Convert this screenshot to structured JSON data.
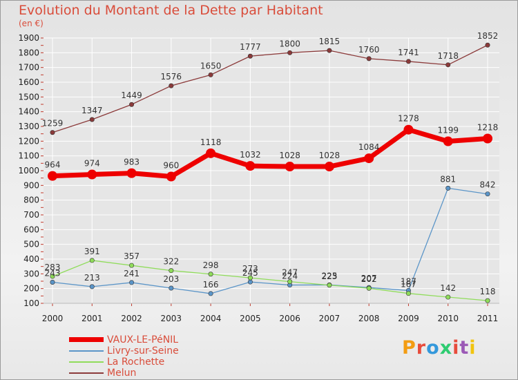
{
  "title": "Evolution du Montant de la Dette par Habitant",
  "subtitle": "(en €)",
  "logo": [
    "P",
    "r",
    "o",
    "x",
    "i",
    "t",
    "i"
  ],
  "logo_colors": [
    "#f39c12",
    "#e74c3c",
    "#3498db",
    "#2ecc71",
    "#e74c3c",
    "#9b59b6",
    "#f1c40f"
  ],
  "colors": {
    "title": "#d94c3a",
    "grid": "#ffffff",
    "axis_ticks": "#c0392b"
  },
  "chart_data": {
    "type": "line",
    "title": "Evolution du Montant de la Dette par Habitant",
    "subtitle": "(en €)",
    "xlabel": "",
    "ylabel": "",
    "ylim": [
      100,
      1900
    ],
    "yticks": [
      100,
      200,
      300,
      400,
      500,
      600,
      700,
      800,
      900,
      1000,
      1100,
      1200,
      1300,
      1400,
      1500,
      1600,
      1700,
      1800,
      1900
    ],
    "grid": true,
    "legend": "bottom-left",
    "categories": [
      "2000",
      "2001",
      "2002",
      "2003",
      "2004",
      "2005",
      "2006",
      "2007",
      "2008",
      "2009",
      "2010",
      "2011"
    ],
    "series": [
      {
        "name": "VAUX-LE-PéNIL",
        "color": "#ee0000",
        "thick": true,
        "values": [
          964,
          974,
          983,
          960,
          1118,
          1032,
          1028,
          1028,
          1084,
          1278,
          1199,
          1218
        ]
      },
      {
        "name": "Livry-sur-Seine",
        "color": "#5b95c8",
        "thick": false,
        "values": [
          243,
          213,
          241,
          203,
          166,
          245,
          224,
          225,
          207,
          187,
          881,
          842
        ]
      },
      {
        "name": "La Rochette",
        "color": "#8fdc5a",
        "thick": false,
        "values": [
          283,
          391,
          357,
          322,
          298,
          273,
          247,
          223,
          202,
          167,
          142,
          118
        ]
      },
      {
        "name": "Melun",
        "color": "#8b3a3a",
        "thick": false,
        "values": [
          1259,
          1347,
          1449,
          1576,
          1650,
          1777,
          1800,
          1815,
          1760,
          1741,
          1718,
          1852
        ]
      }
    ]
  }
}
